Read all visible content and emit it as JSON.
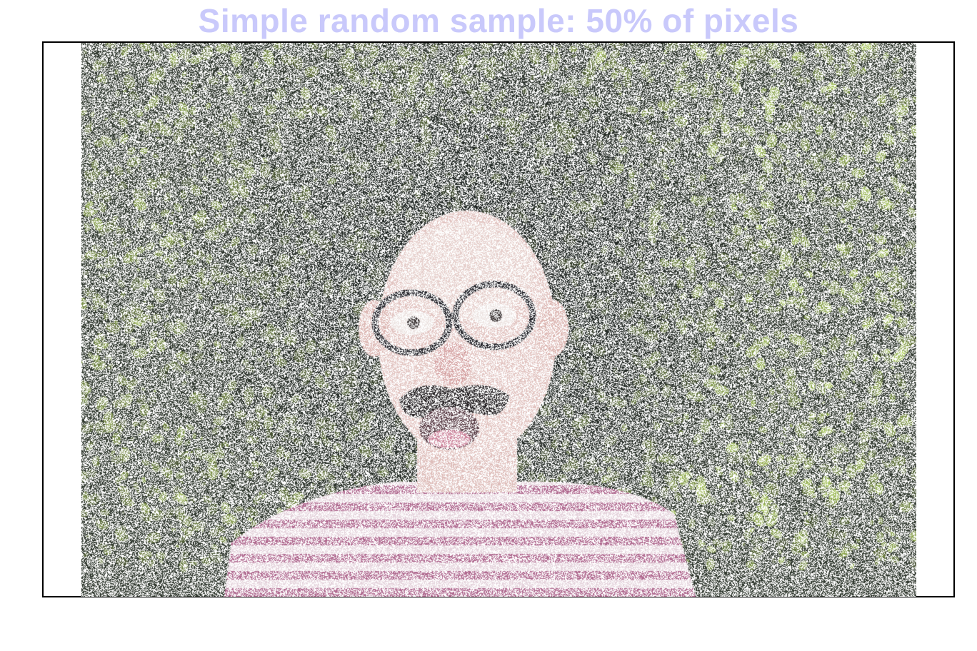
{
  "title": "Simple random sample: 50% of pixels",
  "sample": {
    "fraction": 0.5
  },
  "colors": {
    "title": "#c9c9fb",
    "frame": "#000000",
    "background": "#ffffff"
  }
}
